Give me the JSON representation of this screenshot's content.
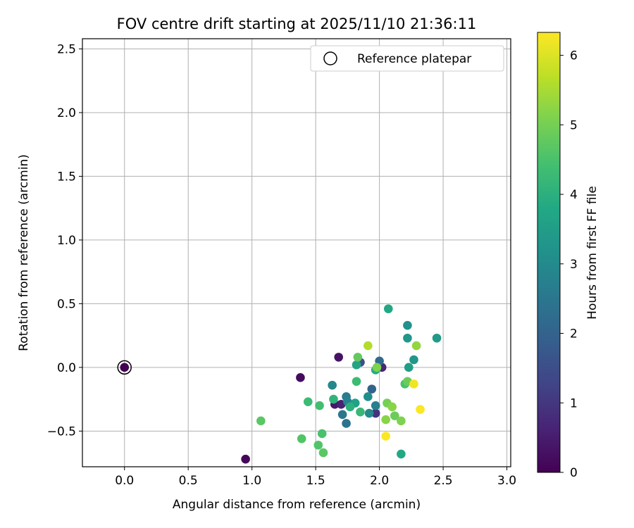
{
  "chart_data": {
    "type": "scatter",
    "title": "FOV centre drift starting at 2025/11/10 21:36:11",
    "xlabel": "Angular distance from reference (arcmin)",
    "ylabel": "Rotation from reference (arcmin)",
    "xlim": [
      -0.33,
      3.03
    ],
    "ylim": [
      -0.78,
      2.58
    ],
    "xticks": [
      0.0,
      0.5,
      1.0,
      1.5,
      2.0,
      2.5,
      3.0
    ],
    "xtick_labels": [
      "0.0",
      "0.5",
      "1.0",
      "1.5",
      "2.0",
      "2.5",
      "3.0"
    ],
    "yticks": [
      -0.5,
      0.0,
      0.5,
      1.0,
      1.5,
      2.0,
      2.5
    ],
    "ytick_labels": [
      "−0.5",
      "0.0",
      "0.5",
      "1.0",
      "1.5",
      "2.0",
      "2.5"
    ],
    "grid": true,
    "legend": {
      "location": "top-right",
      "entries": [
        "Reference platepar"
      ]
    },
    "reference_point": {
      "x": 0.0,
      "y": 0.0,
      "label": "Reference platepar"
    },
    "colorbar": {
      "label": "Hours from first FF file",
      "min": 0,
      "max": 6.33,
      "colormap": "viridis",
      "ticks": [
        0,
        1,
        2,
        3,
        4,
        5,
        6
      ],
      "tick_labels": [
        "0",
        "1",
        "2",
        "3",
        "4",
        "5",
        "6"
      ]
    },
    "points": [
      {
        "x": 0.0,
        "y": 0.0,
        "hours": 0.0
      },
      {
        "x": 0.95,
        "y": -0.72,
        "hours": 0.1
      },
      {
        "x": 1.38,
        "y": -0.08,
        "hours": 0.2
      },
      {
        "x": 1.68,
        "y": 0.08,
        "hours": 0.3
      },
      {
        "x": 1.65,
        "y": -0.29,
        "hours": 0.4
      },
      {
        "x": 1.7,
        "y": -0.29,
        "hours": 0.6
      },
      {
        "x": 2.02,
        "y": 0.0,
        "hours": 0.7
      },
      {
        "x": 1.97,
        "y": -0.36,
        "hours": 0.9
      },
      {
        "x": 1.85,
        "y": 0.04,
        "hours": 1.5
      },
      {
        "x": 1.94,
        "y": -0.17,
        "hours": 2.0
      },
      {
        "x": 2.0,
        "y": 0.05,
        "hours": 2.2
      },
      {
        "x": 1.74,
        "y": -0.44,
        "hours": 2.4
      },
      {
        "x": 1.71,
        "y": -0.37,
        "hours": 2.5
      },
      {
        "x": 1.74,
        "y": -0.23,
        "hours": 2.6
      },
      {
        "x": 1.97,
        "y": -0.3,
        "hours": 2.7
      },
      {
        "x": 1.75,
        "y": -0.27,
        "hours": 2.8
      },
      {
        "x": 1.63,
        "y": -0.14,
        "hours": 2.9
      },
      {
        "x": 1.92,
        "y": -0.36,
        "hours": 3.0
      },
      {
        "x": 1.91,
        "y": -0.23,
        "hours": 3.1
      },
      {
        "x": 2.22,
        "y": 0.33,
        "hours": 3.2
      },
      {
        "x": 2.22,
        "y": 0.23,
        "hours": 3.3
      },
      {
        "x": 2.27,
        "y": 0.06,
        "hours": 3.3
      },
      {
        "x": 2.45,
        "y": 0.23,
        "hours": 3.4
      },
      {
        "x": 2.23,
        "y": 0.0,
        "hours": 3.5
      },
      {
        "x": 1.81,
        "y": -0.28,
        "hours": 3.6
      },
      {
        "x": 1.82,
        "y": 0.02,
        "hours": 3.7
      },
      {
        "x": 2.17,
        "y": -0.68,
        "hours": 3.8
      },
      {
        "x": 2.07,
        "y": 0.46,
        "hours": 3.8
      },
      {
        "x": 1.97,
        "y": -0.02,
        "hours": 3.9
      },
      {
        "x": 1.77,
        "y": -0.31,
        "hours": 4.0
      },
      {
        "x": 1.64,
        "y": -0.25,
        "hours": 4.1
      },
      {
        "x": 1.85,
        "y": -0.35,
        "hours": 4.2
      },
      {
        "x": 1.82,
        "y": -0.11,
        "hours": 4.3
      },
      {
        "x": 1.44,
        "y": -0.27,
        "hours": 4.3
      },
      {
        "x": 1.53,
        "y": -0.3,
        "hours": 4.4
      },
      {
        "x": 2.2,
        "y": -0.13,
        "hours": 4.5
      },
      {
        "x": 1.55,
        "y": -0.52,
        "hours": 4.5
      },
      {
        "x": 1.39,
        "y": -0.56,
        "hours": 4.6
      },
      {
        "x": 1.52,
        "y": -0.61,
        "hours": 4.6
      },
      {
        "x": 1.56,
        "y": -0.67,
        "hours": 4.7
      },
      {
        "x": 1.07,
        "y": -0.42,
        "hours": 4.7
      },
      {
        "x": 1.83,
        "y": 0.08,
        "hours": 4.8
      },
      {
        "x": 2.22,
        "y": -0.11,
        "hours": 4.9
      },
      {
        "x": 2.12,
        "y": -0.38,
        "hours": 4.9
      },
      {
        "x": 2.06,
        "y": -0.28,
        "hours": 5.0
      },
      {
        "x": 1.98,
        "y": 0.0,
        "hours": 5.1
      },
      {
        "x": 2.17,
        "y": -0.42,
        "hours": 5.1
      },
      {
        "x": 2.05,
        "y": -0.41,
        "hours": 5.2
      },
      {
        "x": 2.1,
        "y": -0.31,
        "hours": 5.2
      },
      {
        "x": 2.29,
        "y": 0.17,
        "hours": 5.3
      },
      {
        "x": 1.91,
        "y": 0.17,
        "hours": 5.6
      },
      {
        "x": 2.27,
        "y": -0.13,
        "hours": 6.2
      },
      {
        "x": 2.32,
        "y": -0.33,
        "hours": 6.3
      },
      {
        "x": 2.05,
        "y": -0.54,
        "hours": 6.3
      }
    ]
  }
}
